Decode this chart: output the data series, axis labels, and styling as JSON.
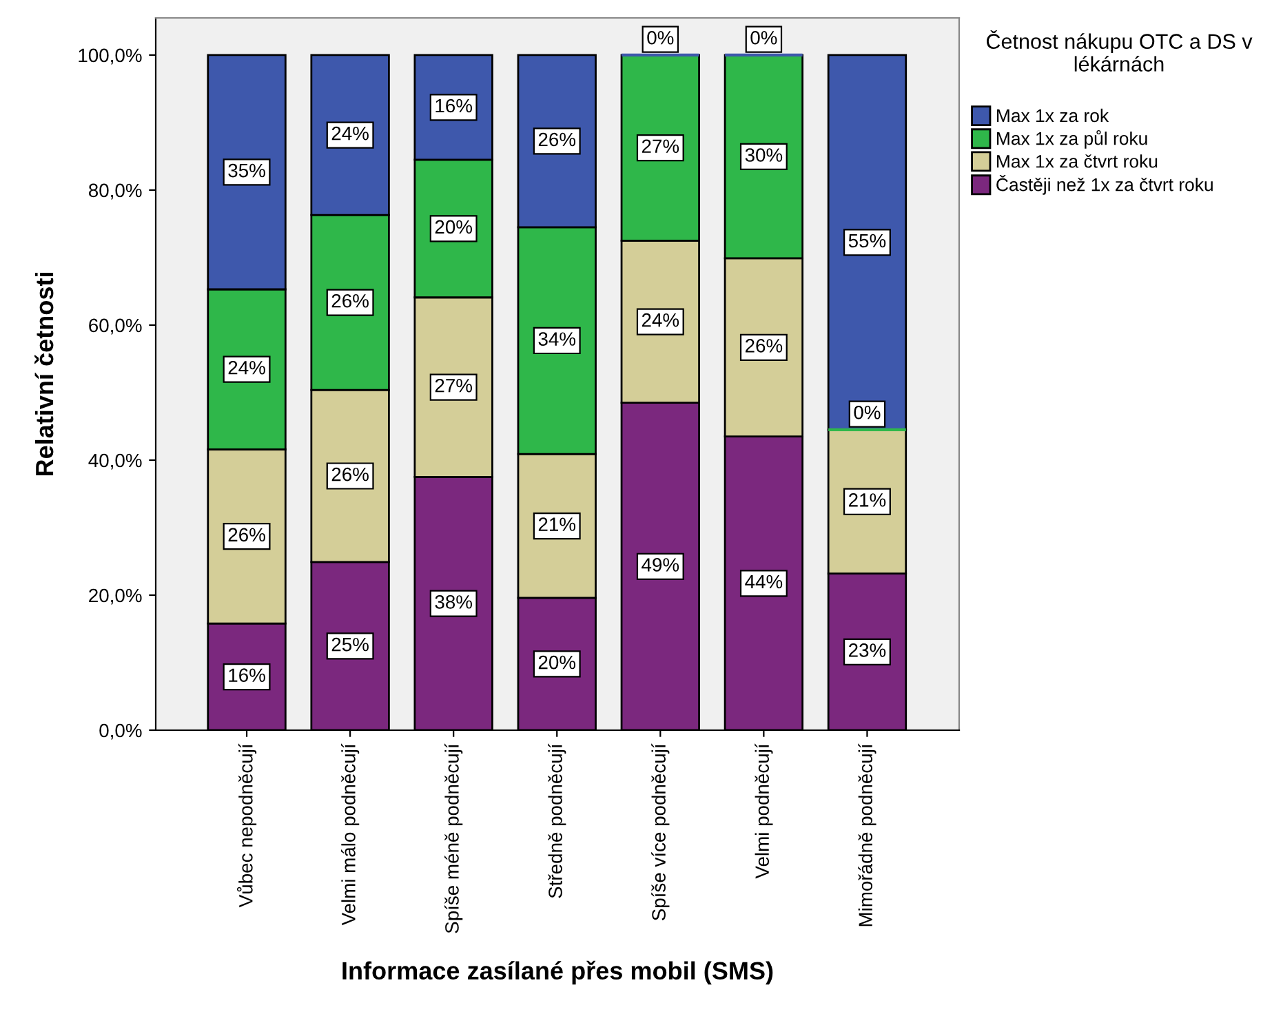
{
  "chart_data": {
    "type": "bar",
    "stacked": true,
    "xlabel": "Informace zasílané přes mobil (SMS)",
    "ylabel": "Relativní četnosti",
    "legend_title": "Četnost nákupu OTC a DS v lékárnách",
    "legend": "top right",
    "categories": [
      "Vůbec nepodněcují",
      "Velmi málo podněcují",
      "Spíše méně podněcují",
      "Středně podněcují",
      "Spíše více podněcují",
      "Velmi podněcují",
      "Mimořádně podněcují"
    ],
    "series": [
      {
        "name": "Častěji než 1x za čtvrt roku",
        "color": "#7b287e",
        "values": [
          15.8,
          24.9,
          37.5,
          19.6,
          48.5,
          43.5,
          23.2
        ],
        "value_labels": [
          "16%",
          "25%",
          "38%",
          "20%",
          "49%",
          "44%",
          "23%"
        ]
      },
      {
        "name": "Max 1x za čtvrt roku",
        "color": "#d4ce98",
        "values": [
          25.8,
          25.5,
          26.6,
          21.3,
          24.0,
          26.4,
          21.3
        ],
        "value_labels": [
          "26%",
          "26%",
          "27%",
          "21%",
          "24%",
          "26%",
          "21%"
        ]
      },
      {
        "name": "Max 1x za půl roku",
        "color": "#2fb74a",
        "values": [
          23.7,
          25.9,
          20.4,
          33.6,
          27.5,
          30.1,
          0
        ],
        "value_labels": [
          "24%",
          "26%",
          "20%",
          "34%",
          "27%",
          "30%",
          "0%"
        ]
      },
      {
        "name": "Max 1x za rok",
        "color": "#3e58ac",
        "values": [
          34.7,
          23.7,
          15.5,
          25.5,
          0,
          0,
          55.5
        ],
        "value_labels": [
          "35%",
          "24%",
          "16%",
          "26%",
          "0%",
          "0%",
          "55%"
        ]
      }
    ],
    "ylim": [
      0,
      105.5
    ],
    "yticks": [
      {
        "value": 0,
        "label": "0,0%"
      },
      {
        "value": 20,
        "label": "20,0%"
      },
      {
        "value": 40,
        "label": "40,0%"
      },
      {
        "value": 60,
        "label": "60,0%"
      },
      {
        "value": 80,
        "label": "80,0%"
      },
      {
        "value": 100,
        "label": "100,0%"
      }
    ],
    "grid": false
  }
}
